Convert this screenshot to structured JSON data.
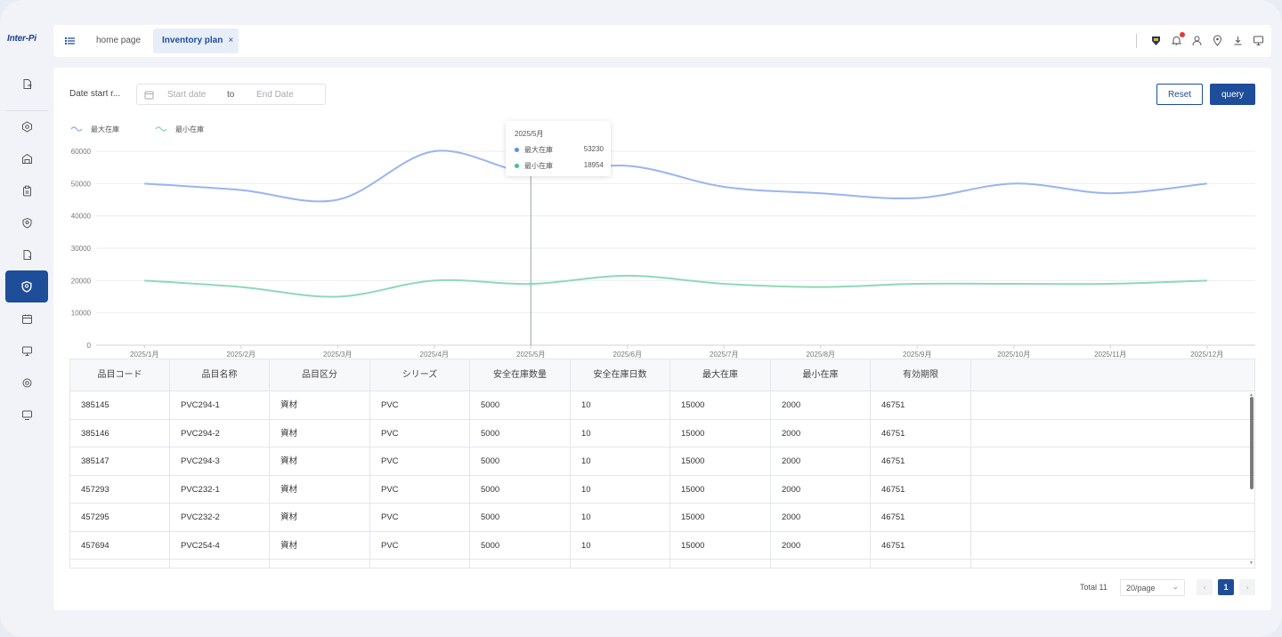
{
  "app": {
    "logo": "Inter-Pi"
  },
  "tabs": [
    {
      "label": "home page"
    },
    {
      "label": "Inventory plan",
      "close": "×"
    }
  ],
  "filter": {
    "label": "Date start r...",
    "start_placeholder": "Start date",
    "to": "to",
    "end_placeholder": "End Date",
    "reset_label": "Reset",
    "query_label": "query"
  },
  "chart_data": {
    "type": "line",
    "categories": [
      "2025/1月",
      "2025/2月",
      "2025/3月",
      "2025/4月",
      "2025/5月",
      "2025/6月",
      "2025/7月",
      "2025/8月",
      "2025/9月",
      "2025/10月",
      "2025/11月",
      "2025/12月"
    ],
    "series": [
      {
        "name": "最大在庫",
        "color": "#9ab3f3",
        "values": [
          50000,
          48000,
          45000,
          60000,
          53230,
          55500,
          49000,
          47000,
          45500,
          50000,
          47000,
          50000
        ]
      },
      {
        "name": "最小在庫",
        "color": "#8fd9b6",
        "values": [
          20000,
          18000,
          15000,
          20000,
          18954,
          21500,
          19000,
          18000,
          19000,
          19000,
          19000,
          20000
        ]
      }
    ],
    "yticks": [
      "0",
      "10000",
      "20000",
      "30000",
      "40000",
      "50000",
      "60000"
    ],
    "ylim": [
      0,
      60000
    ],
    "grid": true,
    "legend": "top-left"
  },
  "tooltip": {
    "title": "2025/5月",
    "rows": [
      {
        "name": "最大在庫",
        "value": "53230"
      },
      {
        "name": "最小在庫",
        "value": "18954"
      }
    ]
  },
  "table": {
    "headers": [
      "品目コード",
      "品目名称",
      "品目区分",
      "シリーズ",
      "安全在庫数量",
      "安全在庫日数",
      "最大在庫",
      "最小在庫",
      "有効期限"
    ],
    "rows": [
      [
        "385145",
        "PVC294-1",
        "資材",
        "PVC",
        "5000",
        "10",
        "15000",
        "2000",
        "46751"
      ],
      [
        "385146",
        "PVC294-2",
        "資材",
        "PVC",
        "5000",
        "10",
        "15000",
        "2000",
        "46751"
      ],
      [
        "385147",
        "PVC294-3",
        "資材",
        "PVC",
        "5000",
        "10",
        "15000",
        "2000",
        "46751"
      ],
      [
        "457293",
        "PVC232-1",
        "資材",
        "PVC",
        "5000",
        "10",
        "15000",
        "2000",
        "46751"
      ],
      [
        "457295",
        "PVC232-2",
        "資材",
        "PVC",
        "5000",
        "10",
        "15000",
        "2000",
        "46751"
      ],
      [
        "457694",
        "PVC254-4",
        "資材",
        "PVC",
        "5000",
        "10",
        "15000",
        "2000",
        "46751"
      ]
    ]
  },
  "pagination": {
    "total": "Total 11",
    "page_size": "20/page",
    "current": "1",
    "prev": "‹",
    "next": "›"
  },
  "colors": {
    "primary": "#1e4d99",
    "max_line": "#9ab3f3",
    "min_line": "#8fd9b6"
  },
  "sidebar": {
    "icons": [
      "file-export-icon",
      "settings-icon",
      "warehouse-icon",
      "clipboard-icon",
      "shield-check-icon",
      "document-icon",
      "shield-active-icon",
      "calendar-icon",
      "monitor-icon",
      "gear-icon",
      "screen-icon"
    ]
  },
  "header_icons": [
    "brand-badge-icon",
    "bell-icon",
    "user-icon",
    "location-icon",
    "download-icon",
    "monitor-icon"
  ]
}
